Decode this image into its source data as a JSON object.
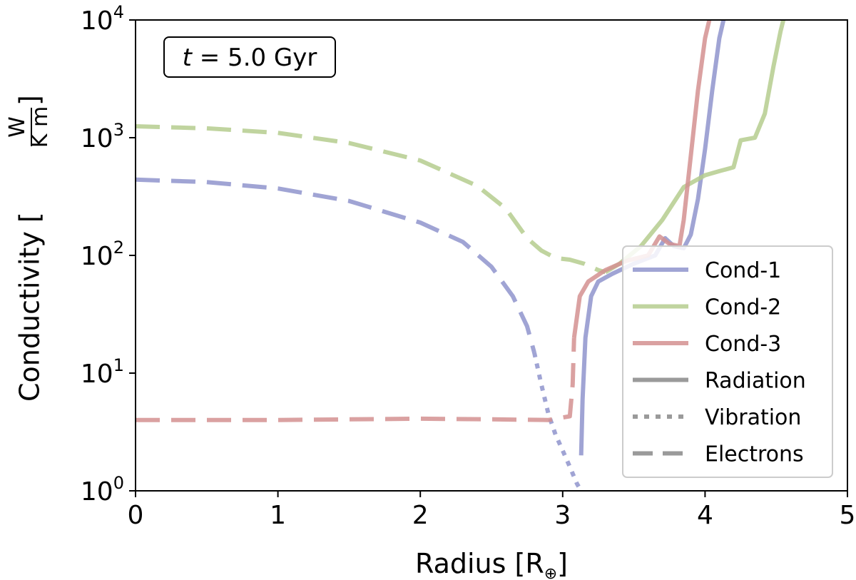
{
  "chart_data": {
    "type": "line",
    "xlabel_main": "Radius [R",
    "xlabel_symbol": "⊕",
    "xlabel_close": "]",
    "ylabel_main": "Conductivity [",
    "ylabel_num": "W",
    "ylabel_den": "K m",
    "ylabel_close": "]",
    "annotation": {
      "var": "t",
      "text": " = 5.0 Gyr"
    },
    "xlim": [
      0,
      5
    ],
    "ylim": [
      1,
      10000
    ],
    "yscale": "log",
    "x_ticks": [
      {
        "value": 0,
        "label": "0"
      },
      {
        "value": 1,
        "label": "1"
      },
      {
        "value": 2,
        "label": "2"
      },
      {
        "value": 3,
        "label": "3"
      },
      {
        "value": 4,
        "label": "4"
      },
      {
        "value": 5,
        "label": "5"
      }
    ],
    "y_ticks": [
      {
        "value": 1,
        "base": "10",
        "exp": "0"
      },
      {
        "value": 10,
        "base": "10",
        "exp": "1"
      },
      {
        "value": 100,
        "base": "10",
        "exp": "2"
      },
      {
        "value": 1000,
        "base": "10",
        "exp": "3"
      },
      {
        "value": 10000,
        "base": "10",
        "exp": "4"
      }
    ],
    "legend_position": "lower-right",
    "legend": [
      {
        "label": "Cond-1",
        "color": "#8f94cc",
        "style": "solid"
      },
      {
        "label": "Cond-2",
        "color": "#b5cc8e",
        "style": "solid"
      },
      {
        "label": "Cond-3",
        "color": "#d49191",
        "style": "solid"
      },
      {
        "label": "Radiation",
        "color": "#888888",
        "style": "solid"
      },
      {
        "label": "Vibration",
        "color": "#888888",
        "style": "dotted"
      },
      {
        "label": "Electrons",
        "color": "#888888",
        "style": "dashed"
      }
    ],
    "series": [
      {
        "name": "Cond-1",
        "kind": "Electrons",
        "color": "#8f94cc",
        "style": "dashed",
        "points": [
          [
            0,
            440
          ],
          [
            0.5,
            420
          ],
          [
            1,
            370
          ],
          [
            1.5,
            290
          ],
          [
            2,
            190
          ],
          [
            2.3,
            130
          ],
          [
            2.5,
            80
          ],
          [
            2.65,
            45
          ],
          [
            2.75,
            25
          ],
          [
            2.8,
            15
          ]
        ]
      },
      {
        "name": "Cond-1",
        "kind": "Vibration",
        "color": "#8f94cc",
        "style": "dotted",
        "points": [
          [
            2.8,
            15
          ],
          [
            2.85,
            8
          ],
          [
            2.9,
            4.5
          ],
          [
            2.95,
            3
          ],
          [
            3.0,
            2.2
          ],
          [
            3.05,
            1.6
          ],
          [
            3.1,
            1.15
          ],
          [
            3.13,
            1
          ]
        ]
      },
      {
        "name": "Cond-1",
        "kind": "Radiation",
        "color": "#8f94cc",
        "style": "solid",
        "points": [
          [
            3.13,
            2
          ],
          [
            3.14,
            6
          ],
          [
            3.16,
            20
          ],
          [
            3.2,
            45
          ],
          [
            3.25,
            60
          ],
          [
            3.35,
            70
          ],
          [
            3.5,
            85
          ],
          [
            3.65,
            100
          ],
          [
            3.72,
            140
          ],
          [
            3.78,
            120
          ],
          [
            3.85,
            115
          ],
          [
            3.9,
            150
          ],
          [
            3.95,
            300
          ],
          [
            4.0,
            800
          ],
          [
            4.05,
            2500
          ],
          [
            4.1,
            7000
          ],
          [
            4.13,
            10000
          ]
        ]
      },
      {
        "name": "Cond-2",
        "kind": "Electrons",
        "color": "#b5cc8e",
        "style": "dashed",
        "points": [
          [
            0,
            1250
          ],
          [
            0.5,
            1200
          ],
          [
            1,
            1100
          ],
          [
            1.5,
            900
          ],
          [
            2,
            640
          ],
          [
            2.4,
            390
          ],
          [
            2.6,
            250
          ],
          [
            2.75,
            140
          ],
          [
            2.85,
            110
          ],
          [
            2.95,
            95
          ],
          [
            3.05,
            92
          ],
          [
            3.15,
            85
          ],
          [
            3.25,
            75
          ],
          [
            3.3,
            72
          ]
        ]
      },
      {
        "name": "Cond-2",
        "kind": "Radiation",
        "color": "#b5cc8e",
        "style": "solid",
        "points": [
          [
            3.3,
            72
          ],
          [
            3.4,
            85
          ],
          [
            3.55,
            120
          ],
          [
            3.7,
            200
          ],
          [
            3.85,
            380
          ],
          [
            4.0,
            480
          ],
          [
            4.1,
            520
          ],
          [
            4.2,
            560
          ],
          [
            4.25,
            950
          ],
          [
            4.35,
            1000
          ],
          [
            4.42,
            1600
          ],
          [
            4.48,
            4000
          ],
          [
            4.53,
            8000
          ],
          [
            4.55,
            10000
          ]
        ]
      },
      {
        "name": "Cond-3",
        "kind": "Electrons",
        "color": "#d49191",
        "style": "dashed",
        "points": [
          [
            0,
            4
          ],
          [
            0.5,
            4
          ],
          [
            1,
            4
          ],
          [
            1.5,
            4.05
          ],
          [
            2,
            4.1
          ],
          [
            2.5,
            4.05
          ],
          [
            2.9,
            4
          ],
          [
            3.05,
            4.3
          ],
          [
            3.07,
            8
          ],
          [
            3.08,
            20
          ]
        ]
      },
      {
        "name": "Cond-3",
        "kind": "Radiation",
        "color": "#d49191",
        "style": "solid",
        "points": [
          [
            3.08,
            20
          ],
          [
            3.12,
            45
          ],
          [
            3.18,
            60
          ],
          [
            3.3,
            75
          ],
          [
            3.45,
            90
          ],
          [
            3.6,
            100
          ],
          [
            3.68,
            145
          ],
          [
            3.75,
            125
          ],
          [
            3.82,
            120
          ],
          [
            3.85,
            200
          ],
          [
            3.9,
            700
          ],
          [
            3.95,
            2500
          ],
          [
            4.0,
            7000
          ],
          [
            4.03,
            10000
          ]
        ]
      }
    ]
  }
}
